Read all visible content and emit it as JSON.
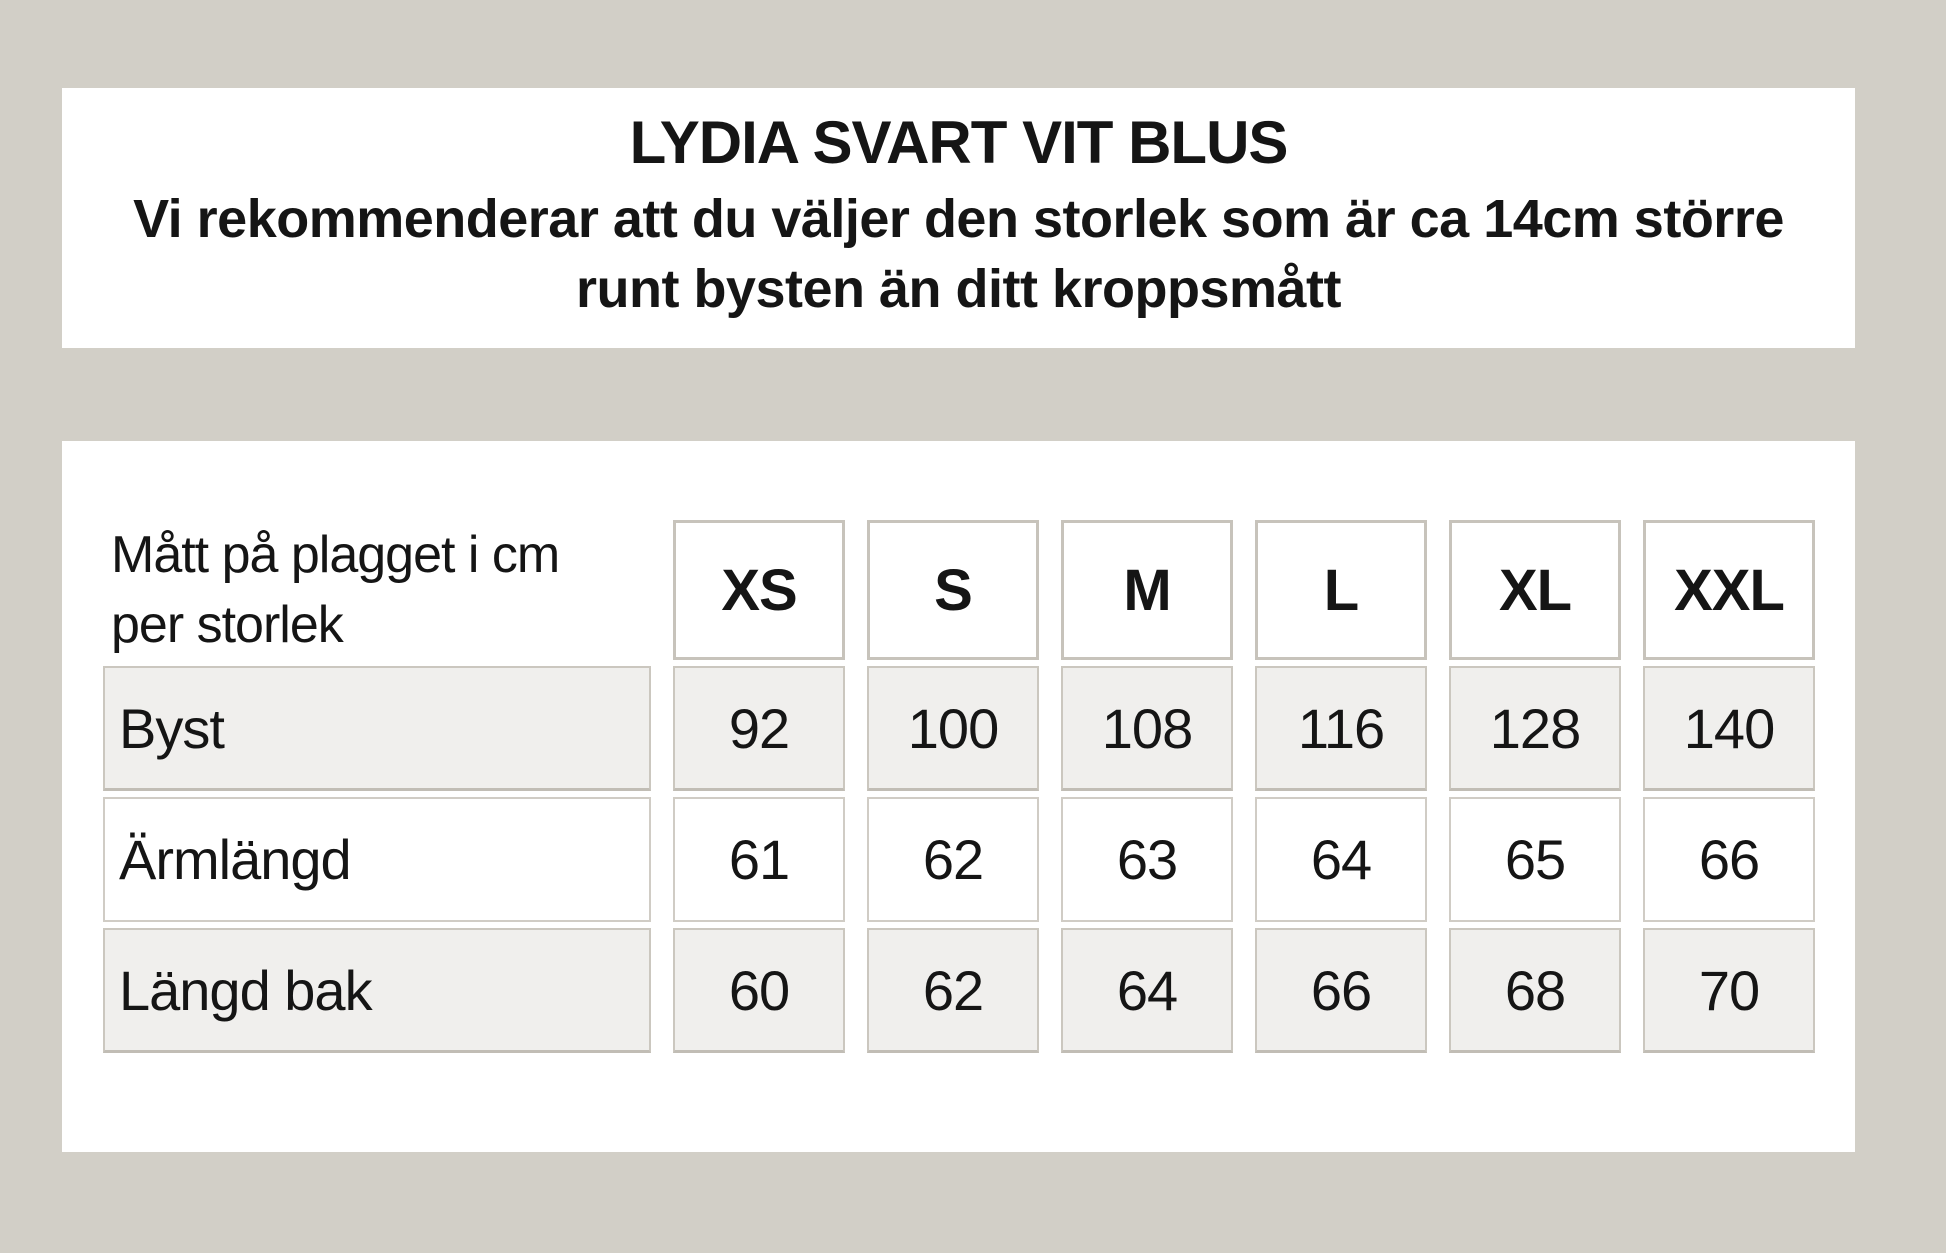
{
  "header": {
    "title": "LYDIA SVART VIT BLUS",
    "subtitle_line1": "Vi rekommenderar att du väljer den storlek som är ca 14cm större",
    "subtitle_line2": "runt bysten än ditt kroppsmått"
  },
  "table": {
    "corner_label": "Mått på plagget i cm per storlek",
    "columns": [
      "XS",
      "S",
      "M",
      "L",
      "XL",
      "XXL"
    ],
    "rows": [
      {
        "label": "Byst",
        "values": [
          "92",
          "100",
          "108",
          "116",
          "128",
          "140"
        ]
      },
      {
        "label": "Ärmlängd",
        "values": [
          "61",
          "62",
          "63",
          "64",
          "65",
          "66"
        ]
      },
      {
        "label": "Längd bak",
        "values": [
          "60",
          "62",
          "64",
          "66",
          "68",
          "70"
        ]
      }
    ]
  },
  "chart_data": {
    "type": "table",
    "title": "LYDIA SVART VIT BLUS",
    "note": "Vi rekommenderar att du väljer den storlek som är ca 14cm större runt bysten än ditt kroppsmått",
    "row_header": "Mått på plagget i cm per storlek",
    "categories": [
      "XS",
      "S",
      "M",
      "L",
      "XL",
      "XXL"
    ],
    "series": [
      {
        "name": "Byst",
        "values": [
          92,
          100,
          108,
          116,
          128,
          140
        ]
      },
      {
        "name": "Ärmlängd",
        "values": [
          61,
          62,
          63,
          64,
          65,
          66
        ]
      },
      {
        "name": "Längd bak",
        "values": [
          60,
          62,
          64,
          66,
          68,
          70
        ]
      }
    ]
  },
  "colors": {
    "page_background": "#d2cfc7",
    "panel_background": "#ffffff",
    "shaded_cell": "#f0efed",
    "cell_border": "#cbc7bf",
    "text": "#151515"
  }
}
